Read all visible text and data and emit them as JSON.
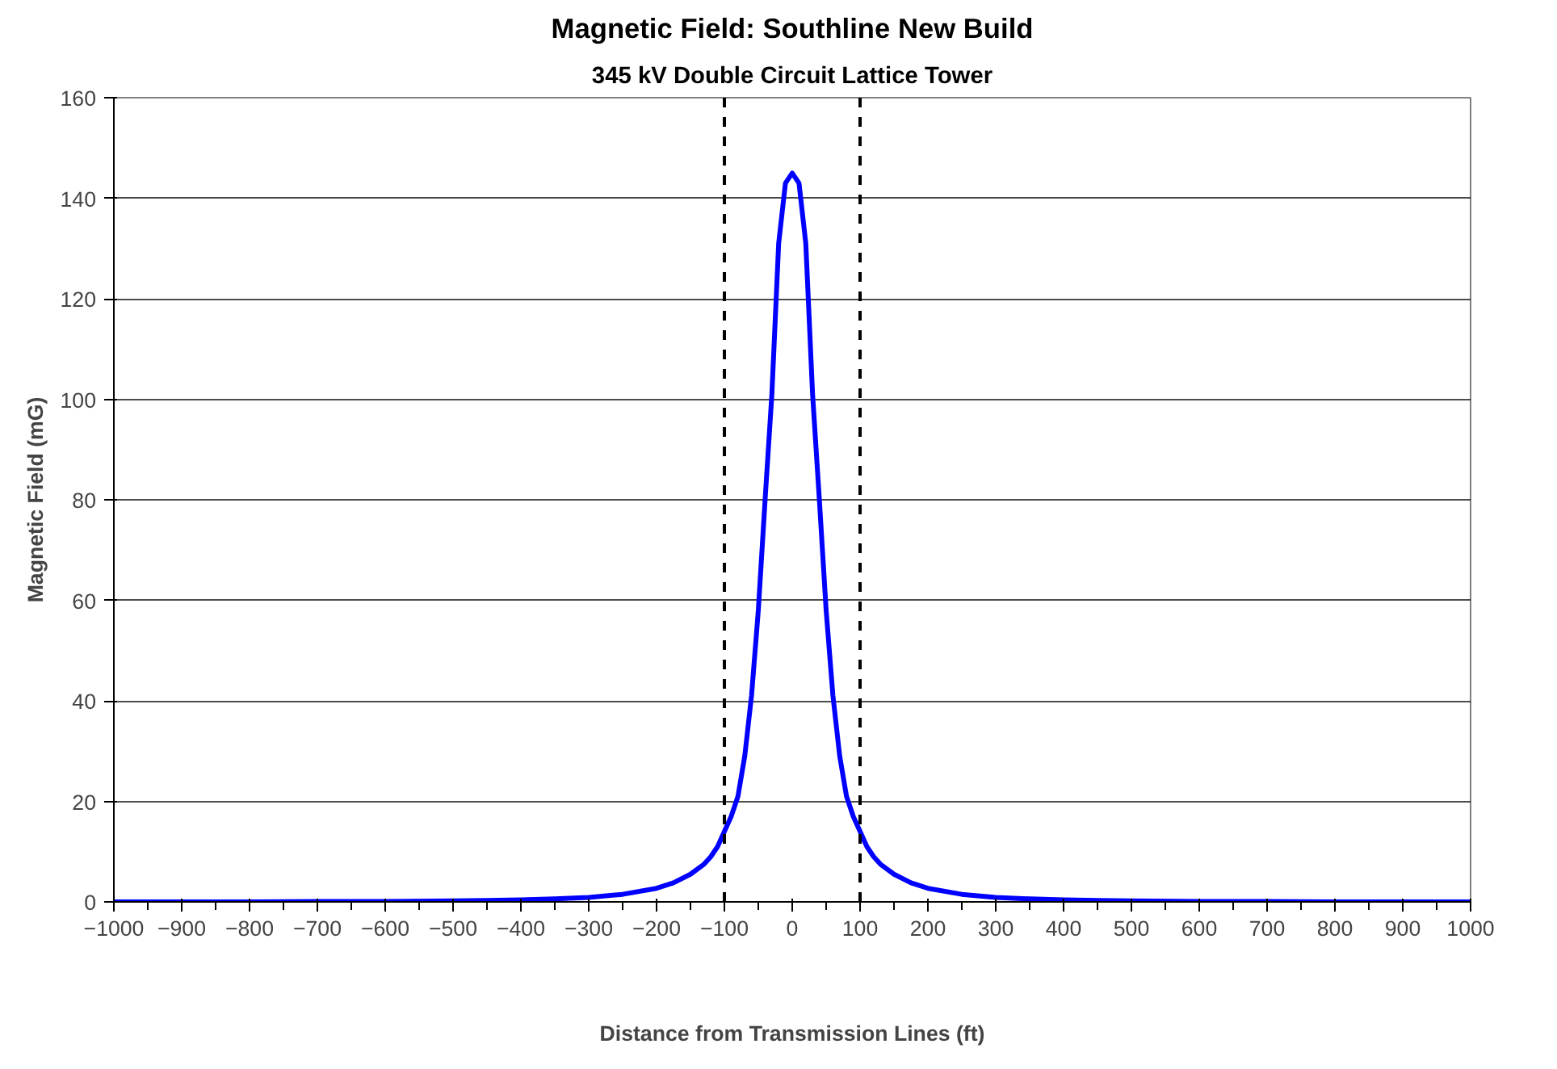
{
  "chart_data": {
    "type": "line",
    "title": "Magnetic Field: Southline New Build",
    "subtitle": "345 kV Double Circuit Lattice Tower",
    "xlabel": "Distance from Transmission Lines (ft)",
    "ylabel": "Magnetic Field (mG)",
    "series": [
      {
        "color": "#0000ff",
        "x": [
          -1000,
          -900,
          -800,
          -700,
          -600,
          -500,
          -450,
          -400,
          -350,
          -300,
          -250,
          -200,
          -175,
          -150,
          -130,
          -120,
          -110,
          -100,
          -90,
          -80,
          -70,
          -60,
          -50,
          -40,
          -30,
          -20,
          -10,
          0,
          10,
          20,
          30,
          40,
          50,
          60,
          70,
          80,
          90,
          100,
          110,
          120,
          130,
          150,
          175,
          200,
          250,
          300,
          350,
          400,
          450,
          500,
          600,
          700,
          800,
          900,
          1000
        ],
        "values": [
          0,
          0,
          0,
          0.1,
          0.1,
          0.2,
          0.3,
          0.4,
          0.6,
          0.9,
          1.5,
          2.7,
          3.8,
          5.5,
          7.5,
          9,
          11,
          14,
          17,
          21,
          29,
          41,
          58,
          80,
          101,
          131,
          143,
          145,
          143,
          131,
          101,
          80,
          58,
          41,
          29,
          21,
          17,
          14,
          11,
          9,
          7.5,
          5.5,
          3.8,
          2.7,
          1.5,
          0.9,
          0.6,
          0.4,
          0.3,
          0.2,
          0.1,
          0.1,
          0,
          0,
          0
        ]
      }
    ],
    "ref_lines": [
      {
        "axis": "x",
        "value": -100,
        "color": "#000000",
        "line_style": "dashed"
      },
      {
        "axis": "x",
        "value": 100,
        "color": "#000000",
        "line_style": "dashed"
      }
    ],
    "xlim": [
      -1000,
      1000
    ],
    "xticks": [
      -1000,
      -900,
      -800,
      -700,
      -600,
      -500,
      -400,
      -300,
      -200,
      -100,
      0,
      100,
      200,
      300,
      400,
      500,
      600,
      700,
      800,
      900,
      1000
    ],
    "ylim": [
      0,
      160
    ],
    "yticks": [
      0,
      20,
      40,
      60,
      80,
      100,
      120,
      140,
      160
    ],
    "grid": "y",
    "marker": "none",
    "line_style": "solid"
  }
}
